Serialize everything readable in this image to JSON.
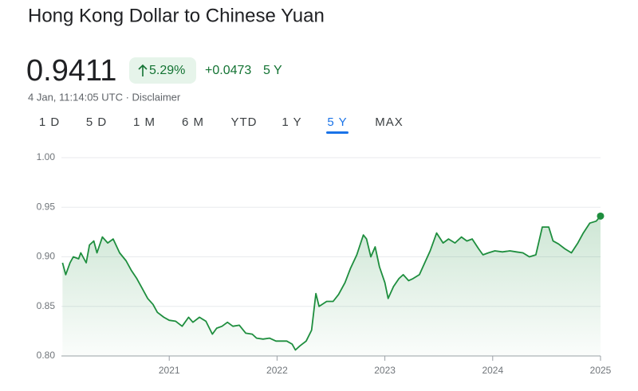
{
  "header": {
    "title": "Hong Kong Dollar to Chinese Yuan",
    "price": "0.9411",
    "change_pct": "5.29%",
    "change_abs": "+0.0473",
    "period": "5 Y",
    "timestamp": "4 Jan, 11:14:05 UTC · Disclaimer"
  },
  "tabs": {
    "items": [
      "1 D",
      "5 D",
      "1 M",
      "6 M",
      "YTD",
      "1 Y",
      "5 Y",
      "MAX"
    ],
    "selected": "5 Y"
  },
  "chart_data": {
    "type": "line",
    "x": [
      2020.01,
      2020.04,
      2020.08,
      2020.11,
      2020.16,
      2020.18,
      2020.23,
      2020.26,
      2020.3,
      2020.33,
      2020.38,
      2020.43,
      2020.48,
      2020.54,
      2020.6,
      2020.65,
      2020.7,
      2020.75,
      2020.8,
      2020.85,
      2020.89,
      2020.95,
      2021.0,
      2021.06,
      2021.12,
      2021.18,
      2021.22,
      2021.28,
      2021.34,
      2021.4,
      2021.44,
      2021.49,
      2021.54,
      2021.59,
      2021.65,
      2021.71,
      2021.77,
      2021.81,
      2021.87,
      2021.93,
      2021.99,
      2022.03,
      2022.09,
      2022.14,
      2022.17,
      2022.21,
      2022.27,
      2022.32,
      2022.36,
      2022.39,
      2022.46,
      2022.52,
      2022.57,
      2022.63,
      2022.68,
      2022.74,
      2022.8,
      2022.83,
      2022.87,
      2022.91,
      2022.95,
      2023.0,
      2023.03,
      2023.08,
      2023.13,
      2023.17,
      2023.22,
      2023.26,
      2023.32,
      2023.37,
      2023.42,
      2023.48,
      2023.54,
      2023.59,
      2023.65,
      2023.71,
      2023.76,
      2023.81,
      2023.87,
      2023.91,
      2023.96,
      2024.02,
      2024.09,
      2024.16,
      2024.22,
      2024.28,
      2024.34,
      2024.4,
      2024.46,
      2024.52,
      2024.56,
      2024.61,
      2024.67,
      2024.73,
      2024.79,
      2024.84,
      2024.9,
      2024.96,
      2025.0
    ],
    "series": [
      {
        "name": "HKD/CNY",
        "color": "#1e8e3e",
        "values": [
          0.894,
          0.882,
          0.894,
          0.9,
          0.898,
          0.904,
          0.894,
          0.912,
          0.916,
          0.904,
          0.92,
          0.914,
          0.918,
          0.904,
          0.896,
          0.886,
          0.878,
          0.868,
          0.858,
          0.852,
          0.844,
          0.839,
          0.836,
          0.835,
          0.83,
          0.839,
          0.834,
          0.839,
          0.835,
          0.822,
          0.828,
          0.83,
          0.834,
          0.83,
          0.831,
          0.823,
          0.822,
          0.818,
          0.817,
          0.818,
          0.815,
          0.815,
          0.815,
          0.812,
          0.806,
          0.81,
          0.815,
          0.826,
          0.863,
          0.85,
          0.855,
          0.855,
          0.862,
          0.874,
          0.888,
          0.902,
          0.922,
          0.918,
          0.9,
          0.91,
          0.89,
          0.874,
          0.858,
          0.87,
          0.878,
          0.882,
          0.876,
          0.878,
          0.882,
          0.894,
          0.906,
          0.924,
          0.914,
          0.918,
          0.914,
          0.92,
          0.916,
          0.918,
          0.908,
          0.902,
          0.904,
          0.906,
          0.905,
          0.906,
          0.905,
          0.904,
          0.9,
          0.902,
          0.93,
          0.93,
          0.916,
          0.913,
          0.908,
          0.904,
          0.914,
          0.924,
          0.934,
          0.936,
          0.9411
        ]
      }
    ],
    "xlim": [
      2020,
      2025
    ],
    "xticks": [
      2021,
      2022,
      2023,
      2024,
      2025
    ],
    "ylim": [
      0.8,
      1
    ],
    "yticks": [
      {
        "value": 1,
        "label": "1.00"
      },
      0.95,
      {
        "value": 0.9,
        "label": "0.90"
      },
      0.85,
      {
        "value": 0.8,
        "label": "0.80"
      }
    ],
    "grid": true
  }
}
